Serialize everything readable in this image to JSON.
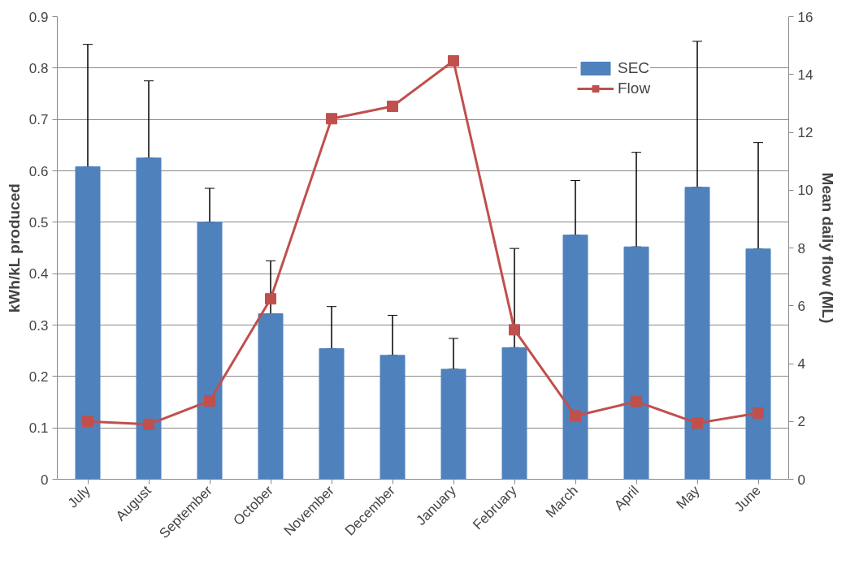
{
  "chart_data": {
    "type": "bar",
    "ylabel": "kWh/kL produced",
    "y2label": "Mean daily flow (ML)",
    "categories": [
      "July",
      "August",
      "September",
      "October",
      "November",
      "December",
      "January",
      "February",
      "March",
      "April",
      "May",
      "June"
    ],
    "series": [
      {
        "name": "SEC",
        "color": "#4f81bd",
        "values": [
          0.608,
          0.625,
          0.5,
          0.322,
          0.254,
          0.241,
          0.214,
          0.256,
          0.475,
          0.452,
          0.568,
          0.448
        ],
        "errors": [
          [
            0.608,
            0.846
          ],
          [
            0.625,
            0.775
          ],
          [
            0.5,
            0.566
          ],
          [
            0.322,
            0.425
          ],
          [
            0.254,
            0.336
          ],
          [
            0.241,
            0.319
          ],
          [
            0.214,
            0.274
          ],
          [
            0.256,
            0.449
          ],
          [
            0.475,
            0.581
          ],
          [
            0.452,
            0.636
          ],
          [
            0.568,
            0.852
          ],
          [
            0.448,
            0.655
          ]
        ]
      },
      {
        "name": "Flow",
        "type": "line",
        "axis": "y2",
        "color": "#c0504d",
        "marker": "square",
        "values": [
          2.0,
          1.9,
          2.71,
          6.24,
          12.47,
          12.9,
          14.47,
          5.17,
          2.19,
          2.69,
          1.94,
          2.29
        ]
      }
    ],
    "ylim": [
      0,
      0.9
    ],
    "yticks": [
      0,
      0.1,
      0.2,
      0.3,
      0.4,
      0.5,
      0.6,
      0.7,
      0.8,
      0.9
    ],
    "y2lim": [
      0,
      16
    ],
    "y2ticks": [
      0,
      2,
      4,
      6,
      8,
      10,
      12,
      14,
      16
    ],
    "grid": "y",
    "legend": "top right"
  }
}
